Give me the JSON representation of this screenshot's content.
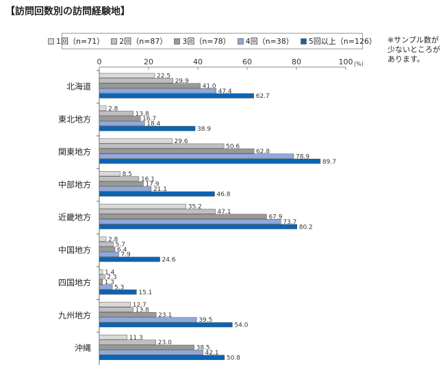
{
  "title": "【訪問回数別の訪問経験地】",
  "note": "※サンプル数が少ないところがあります。",
  "chart_data": {
    "type": "bar",
    "orientation": "horizontal",
    "xlim": [
      0,
      100
    ],
    "xticks": [
      0,
      20,
      40,
      60,
      80,
      100
    ],
    "unit_label": "(%)",
    "grid": false,
    "legend_position": "top",
    "categories": [
      "北海道",
      "東北地方",
      "関東地方",
      "中部地方",
      "近畿地方",
      "中国地方",
      "四国地方",
      "九州地方",
      "沖縄"
    ],
    "series": [
      {
        "name": "1回（n=71）",
        "color": "#d9d9d9",
        "values": [
          22.5,
          2.8,
          29.6,
          8.5,
          35.2,
          2.8,
          1.4,
          12.7,
          11.3
        ]
      },
      {
        "name": "2回（n=87）",
        "color": "#bfbfbf",
        "values": [
          29.9,
          13.8,
          50.6,
          16.1,
          47.1,
          5.7,
          2.3,
          13.8,
          23.0
        ]
      },
      {
        "name": "3回（n=78）",
        "color": "#999999",
        "values": [
          41.0,
          16.7,
          62.8,
          17.9,
          67.9,
          6.4,
          1.3,
          23.1,
          38.5
        ]
      },
      {
        "name": "4回（n=38）",
        "color": "#8ea9db",
        "values": [
          47.4,
          18.4,
          78.9,
          21.1,
          73.7,
          7.9,
          5.3,
          39.5,
          42.1
        ]
      },
      {
        "name": "5回以上（n=126）",
        "color": "#0b64b4",
        "values": [
          62.7,
          38.9,
          89.7,
          46.8,
          80.2,
          24.6,
          15.1,
          54.0,
          50.8
        ]
      }
    ]
  }
}
